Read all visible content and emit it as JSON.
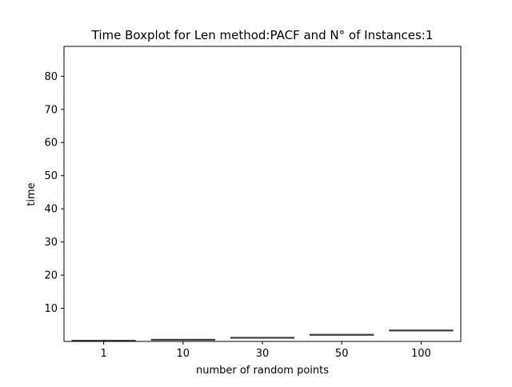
{
  "chart_data": {
    "type": "box",
    "title": "Time Boxplot for Len method:PACF and N° of Instances:1",
    "xlabel": "number of random points",
    "ylabel": "time",
    "categories": [
      "1",
      "10",
      "30",
      "50",
      "100"
    ],
    "boxes": [
      {
        "category": "1",
        "min": 0.2,
        "q1": 0.2,
        "median": 0.2,
        "q3": 0.2,
        "max": 0.2
      },
      {
        "category": "10",
        "min": 0.5,
        "q1": 0.5,
        "median": 0.5,
        "q3": 0.5,
        "max": 0.5
      },
      {
        "category": "30",
        "min": 1.1,
        "q1": 1.1,
        "median": 1.1,
        "q3": 1.1,
        "max": 1.1
      },
      {
        "category": "50",
        "min": 2.0,
        "q1": 2.0,
        "median": 2.0,
        "q3": 2.0,
        "max": 2.0
      },
      {
        "category": "100",
        "min": 3.3,
        "q1": 3.3,
        "median": 3.3,
        "q3": 3.3,
        "max": 3.3
      }
    ],
    "ylim": [
      0,
      89
    ],
    "yticks": [
      10,
      20,
      30,
      40,
      50,
      60,
      70,
      80
    ],
    "grid": false,
    "legend": "none",
    "box_color": "#3f3f3f",
    "axes_color": "#000000",
    "background": "#ffffff"
  }
}
